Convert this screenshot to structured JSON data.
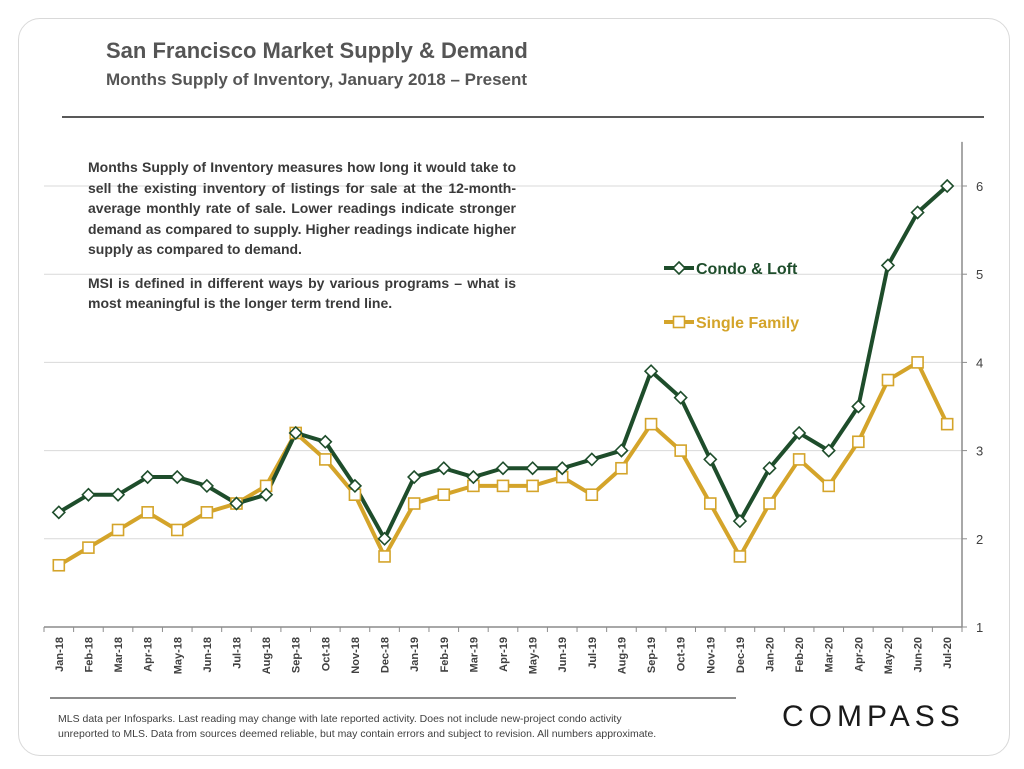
{
  "header": {
    "title": "San Francisco Market Supply & Demand",
    "subtitle": "Months Supply of Inventory, January 2018 – Present"
  },
  "description": {
    "paragraph1": "Months Supply of Inventory measures how long it would take to sell the existing inventory of listings for sale at the 12-month-average monthly rate of sale. Lower readings indicate stronger demand as compared to supply. Higher readings indicate higher supply as compared to demand.",
    "paragraph2": "MSI is defined in different ways by various programs – what is most meaningful is the longer term trend line."
  },
  "footnote": {
    "line1": "MLS data per Infosparks. Last reading may change with late reported activity. Does not include new-project condo activity",
    "line2": "unreported to MLS. Data from sources deemed reliable, but may contain errors and subject to revision. All numbers approximate."
  },
  "logo": {
    "text": "COMPASS"
  },
  "colors": {
    "condo": "#1e4d2b",
    "single_family": "#d4a42a",
    "grid": "#d9d9d9",
    "axis": "#8c8c8c"
  },
  "chart_data": {
    "type": "line",
    "categories": [
      "Jan-18",
      "Feb-18",
      "Mar-18",
      "Apr-18",
      "May-18",
      "Jun-18",
      "Jul-18",
      "Aug-18",
      "Sep-18",
      "Oct-18",
      "Nov-18",
      "Dec-18",
      "Jan-19",
      "Feb-19",
      "Mar-19",
      "Apr-19",
      "May-19",
      "Jun-19",
      "Jul-19",
      "Aug-19",
      "Sep-19",
      "Oct-19",
      "Nov-19",
      "Dec-19",
      "Jan-20",
      "Feb-20",
      "Mar-20",
      "Apr-20",
      "May-20",
      "Jun-20",
      "Jul-20"
    ],
    "series": [
      {
        "name": "Condo & Loft",
        "marker": "diamond",
        "values": [
          2.3,
          2.5,
          2.5,
          2.7,
          2.7,
          2.6,
          2.4,
          2.5,
          3.2,
          3.1,
          2.6,
          2.0,
          2.7,
          2.8,
          2.7,
          2.8,
          2.8,
          2.8,
          2.9,
          3.0,
          3.9,
          3.6,
          2.9,
          2.2,
          2.8,
          3.2,
          3.0,
          3.5,
          5.1,
          5.7,
          6.0
        ]
      },
      {
        "name": "Single Family",
        "marker": "square",
        "values": [
          1.7,
          1.9,
          2.1,
          2.3,
          2.1,
          2.3,
          2.4,
          2.6,
          3.2,
          2.9,
          2.5,
          1.8,
          2.4,
          2.5,
          2.6,
          2.6,
          2.6,
          2.7,
          2.5,
          2.8,
          3.3,
          3.0,
          2.4,
          1.8,
          2.4,
          2.9,
          2.6,
          3.1,
          3.8,
          4.0,
          3.3
        ]
      }
    ],
    "y_ticks": [
      1,
      2,
      3,
      4,
      5,
      6
    ],
    "ylim": [
      1,
      6.5
    ],
    "y_axis_side": "right",
    "grid": true,
    "legend_placement": "inside-right"
  }
}
